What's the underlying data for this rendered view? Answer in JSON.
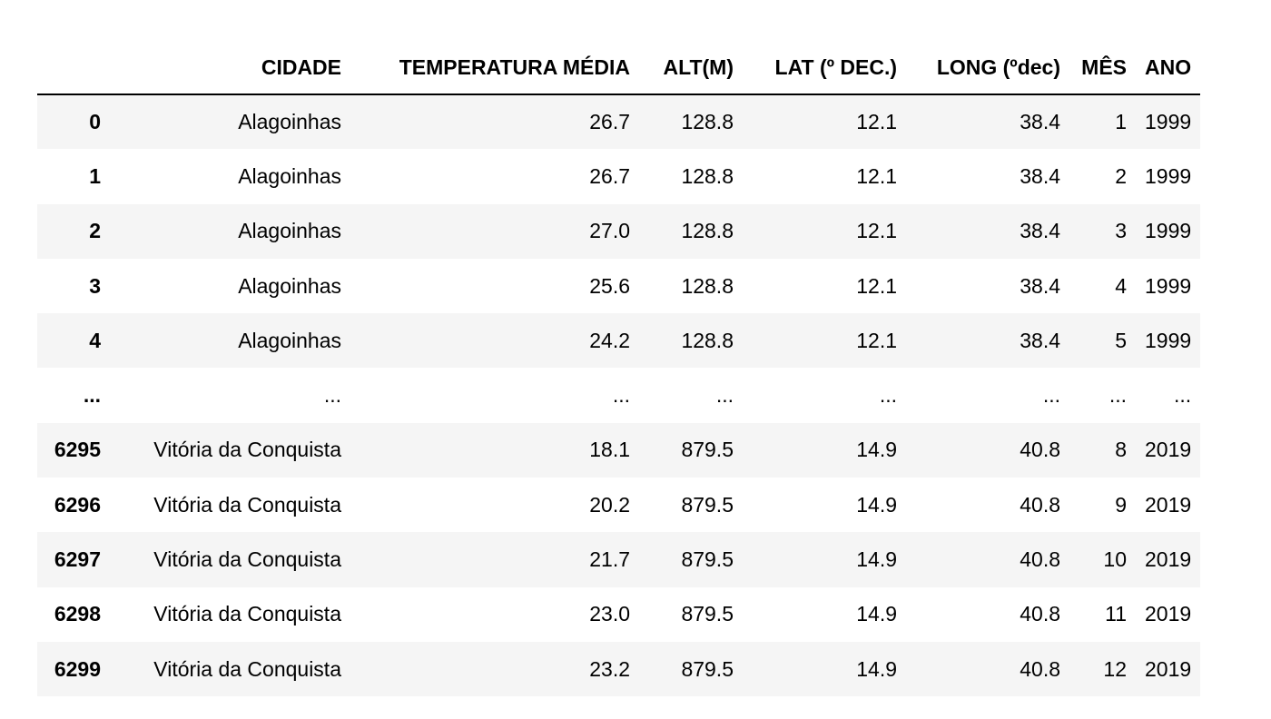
{
  "table": {
    "columns": [
      "",
      "CIDADE",
      "TEMPERATURA MÉDIA",
      "ALT(M)",
      "LAT (º DEC.)",
      "LONG (ºdec)",
      "MÊS",
      "ANO"
    ],
    "rows": [
      [
        "0",
        "Alagoinhas",
        "26.7",
        "128.8",
        "12.1",
        "38.4",
        "1",
        "1999"
      ],
      [
        "1",
        "Alagoinhas",
        "26.7",
        "128.8",
        "12.1",
        "38.4",
        "2",
        "1999"
      ],
      [
        "2",
        "Alagoinhas",
        "27.0",
        "128.8",
        "12.1",
        "38.4",
        "3",
        "1999"
      ],
      [
        "3",
        "Alagoinhas",
        "25.6",
        "128.8",
        "12.1",
        "38.4",
        "4",
        "1999"
      ],
      [
        "4",
        "Alagoinhas",
        "24.2",
        "128.8",
        "12.1",
        "38.4",
        "5",
        "1999"
      ],
      [
        "...",
        "...",
        "...",
        "...",
        "...",
        "...",
        "...",
        "..."
      ],
      [
        "6295",
        "Vitória da Conquista",
        "18.1",
        "879.5",
        "14.9",
        "40.8",
        "8",
        "2019"
      ],
      [
        "6296",
        "Vitória da Conquista",
        "20.2",
        "879.5",
        "14.9",
        "40.8",
        "9",
        "2019"
      ],
      [
        "6297",
        "Vitória da Conquista",
        "21.7",
        "879.5",
        "14.9",
        "40.8",
        "10",
        "2019"
      ],
      [
        "6298",
        "Vitória da Conquista",
        "23.0",
        "879.5",
        "14.9",
        "40.8",
        "11",
        "2019"
      ],
      [
        "6299",
        "Vitória da Conquista",
        "23.2",
        "879.5",
        "14.9",
        "40.8",
        "12",
        "2019"
      ]
    ]
  },
  "colors": {
    "stripe": "#f5f5f5",
    "background": "#ffffff",
    "text": "#000000"
  }
}
